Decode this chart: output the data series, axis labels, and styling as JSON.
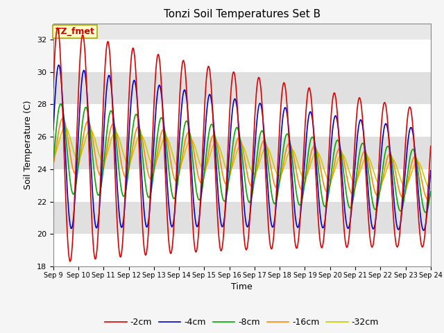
{
  "title": "Tonzi Soil Temperatures Set B",
  "xlabel": "Time",
  "ylabel": "Soil Temperature (C)",
  "annotation": "TZ_fmet",
  "annotation_bg": "#ffffcc",
  "annotation_border": "#aaaa00",
  "annotation_text_color": "#cc0000",
  "ylim": [
    18,
    33
  ],
  "yticks": [
    18,
    20,
    22,
    24,
    26,
    28,
    30,
    32
  ],
  "xtick_labels": [
    "Sep 9",
    "Sep 10",
    "Sep 11",
    "Sep 12",
    "Sep 13",
    "Sep 14",
    "Sep 15",
    "Sep 16",
    "Sep 17",
    "Sep 18",
    "Sep 19",
    "Sep 20",
    "Sep 21",
    "Sep 22",
    "Sep 23",
    "Sep 24"
  ],
  "series": {
    "-2cm": {
      "color": "#dd0000",
      "linewidth": 1.2
    },
    "-4cm": {
      "color": "#0000cc",
      "linewidth": 1.2
    },
    "-8cm": {
      "color": "#00aa00",
      "linewidth": 1.2
    },
    "-16cm": {
      "color": "#ff8800",
      "linewidth": 1.2
    },
    "-32cm": {
      "color": "#cccc00",
      "linewidth": 1.2
    }
  },
  "plot_bg": "#e8e8e8",
  "band_colors": [
    "#ffffff",
    "#e0e0e0"
  ],
  "figsize": [
    6.4,
    4.8
  ],
  "dpi": 100
}
